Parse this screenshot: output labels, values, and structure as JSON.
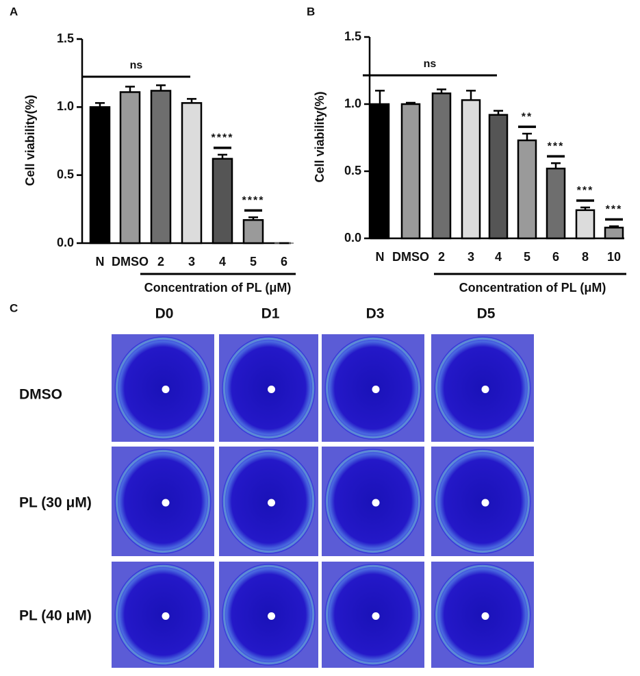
{
  "chart_data": [
    {
      "type": "bar",
      "panel_label": "A",
      "ylabel": "Cell viability(%)",
      "xlabel": "Concentration of PL (μM)",
      "ns": "ns",
      "categories": [
        "N",
        "DMSO",
        "2",
        "3",
        "4",
        "5",
        "6"
      ],
      "values": [
        1.0,
        1.11,
        1.12,
        1.03,
        0.62,
        0.17,
        0.0
      ],
      "errors": [
        0.03,
        0.04,
        0.04,
        0.03,
        0.03,
        0.02,
        0.0
      ],
      "significance": [
        null,
        null,
        null,
        null,
        "****",
        "****",
        null
      ],
      "colors": [
        "#000000",
        "#9a9a9a",
        "#6e6e6e",
        "#dcdcdc",
        "#555555",
        "#9a9a9a",
        "#6e6e6e"
      ],
      "ylim": [
        0,
        1.5
      ],
      "yticks": [
        {
          "value": 0,
          "label": "0.0"
        },
        0.5,
        {
          "value": 1,
          "label": "1.0"
        },
        1.5
      ]
    },
    {
      "type": "bar",
      "panel_label": "B",
      "ylabel": "Cell viability(%)",
      "xlabel": "Concentration of PL (μM)",
      "ns": "ns",
      "categories": [
        "N",
        "DMSO",
        "2",
        "3",
        "4",
        "5",
        "6",
        "8",
        "10"
      ],
      "values": [
        1.0,
        1.0,
        1.08,
        1.03,
        0.92,
        0.73,
        0.52,
        0.21,
        0.08
      ],
      "errors": [
        0.1,
        0.01,
        0.03,
        0.07,
        0.03,
        0.05,
        0.04,
        0.02,
        0.01
      ],
      "significance": [
        null,
        null,
        null,
        null,
        null,
        "**",
        "***",
        "***",
        "***"
      ],
      "colors": [
        "#000000",
        "#9a9a9a",
        "#6e6e6e",
        "#dcdcdc",
        "#555555",
        "#9a9a9a",
        "#6e6e6e",
        "#dcdcdc",
        "#9a9a9a"
      ],
      "ylim": [
        0,
        1.5
      ],
      "yticks": [
        {
          "value": 0,
          "label": "0.0"
        },
        0.5,
        {
          "value": 1,
          "label": "1.0"
        },
        1.5
      ]
    }
  ],
  "image_panel": {
    "panel_label": "C",
    "columns": [
      "D0",
      "D1",
      "D3",
      "D5"
    ],
    "rows": [
      "DMSO",
      "PL (30 μM)",
      "PL (40 μM)"
    ]
  }
}
